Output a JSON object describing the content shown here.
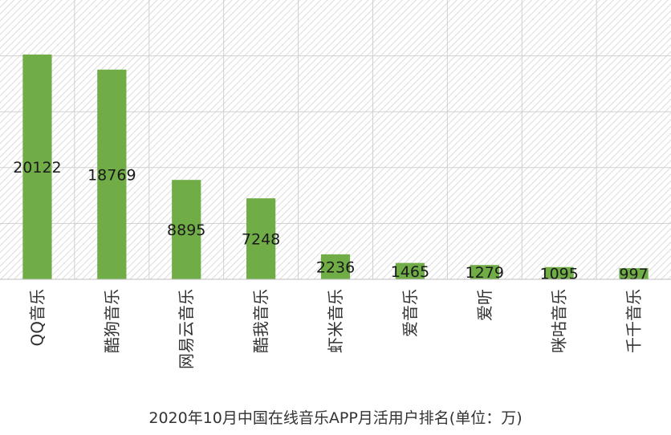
{
  "chart_data": {
    "type": "bar",
    "title": "2020年10月中国在线音乐APP月活用户排名(单位：万)",
    "categories": [
      "QQ音乐",
      "酷狗音乐",
      "网易云音乐",
      "酷我音乐",
      "虾米音乐",
      "爱音乐",
      "爱听",
      "咪咕音乐",
      "千千音乐"
    ],
    "values": [
      20122,
      18769,
      8895,
      7248,
      2236,
      1465,
      1279,
      1095,
      997
    ],
    "data_labels": [
      "20122",
      "18769",
      "8895",
      "7248",
      "2236",
      "1465",
      "1279",
      "1095",
      "997"
    ],
    "ylim": [
      0,
      25000
    ],
    "grid": true,
    "bar_color": "#70ad47",
    "grid_color": "#d0d0d0",
    "hatch_color": "#dcdcdc"
  }
}
